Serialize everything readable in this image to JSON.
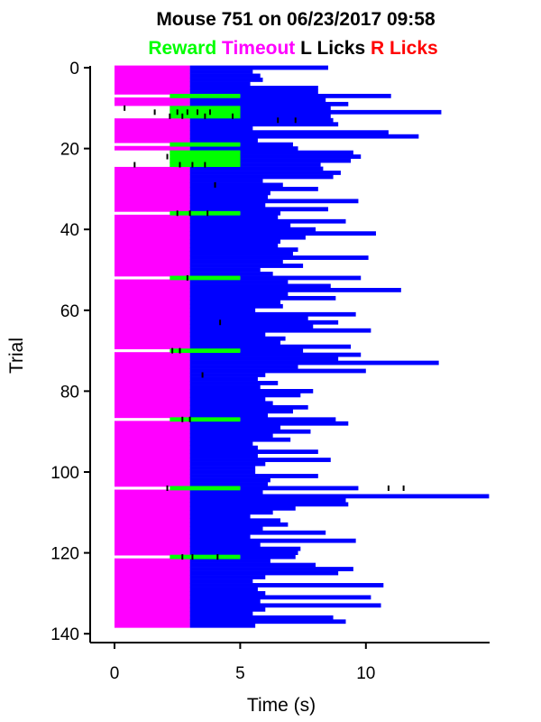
{
  "chart_data": {
    "type": "raster",
    "title": "Mouse 751 on 06/23/2017 09:58",
    "legend": [
      {
        "label": "Reward",
        "color": "#00ff00"
      },
      {
        "label": "Timeout",
        "color": "#ff00ff"
      },
      {
        "label": "L Licks",
        "color": "#000000"
      },
      {
        "label": "R Licks",
        "color": "#ff0000"
      }
    ],
    "xlabel": "Time (s)",
    "ylabel": "Trial",
    "xlim": [
      -0.9,
      15
    ],
    "ylim": [
      141,
      -1
    ],
    "xticks": [
      0,
      5,
      10
    ],
    "yticks": [
      0,
      20,
      40,
      60,
      80,
      100,
      120,
      140
    ],
    "colors": {
      "timeout": "#ff00ff",
      "delay": "#0000ff",
      "reward": "#00ff00",
      "licks": "#000000"
    },
    "timeout_window": [
      0,
      3
    ],
    "reward_window": [
      2.2,
      5
    ],
    "trial_end_times": [
      8.5,
      5.5,
      5.8,
      5.9,
      5.4,
      8.1,
      8.1,
      11.0,
      8.4,
      9.3,
      8.6,
      13.0,
      8.6,
      8.7,
      8.9,
      5.5,
      10.9,
      12.1,
      5.7,
      7.1,
      7.3,
      9.5,
      9.8,
      9.4,
      8.2,
      8.3,
      9.0,
      8.7,
      5.9,
      6.7,
      8.1,
      6.2,
      6.1,
      9.7,
      6.0,
      8.5,
      6.6,
      6.5,
      9.2,
      7.0,
      8.0,
      10.4,
      7.6,
      6.6,
      6.5,
      7.3,
      7.1,
      10.1,
      6.7,
      7.5,
      5.8,
      6.3,
      9.8,
      6.9,
      8.6,
      11.4,
      6.9,
      8.8,
      6.6,
      6.7,
      5.6,
      9.6,
      7.7,
      8.9,
      7.9,
      10.2,
      6.0,
      6.8,
      6.6,
      9.4,
      7.5,
      9.8,
      8.9,
      12.9,
      7.3,
      10.0,
      6.0,
      5.7,
      6.5,
      5.8,
      7.9,
      7.4,
      6.0,
      6.3,
      7.7,
      7.1,
      6.1,
      8.8,
      9.3,
      6.6,
      7.8,
      6.3,
      7.0,
      5.5,
      5.7,
      8.1,
      5.7,
      8.6,
      6.0,
      5.6,
      5.6,
      8.1,
      6.2,
      6.1,
      9.7,
      5.9,
      14.9,
      9.2,
      9.3,
      7.2,
      6.3,
      5.4,
      6.6,
      6.9,
      5.9,
      8.4,
      5.4,
      9.6,
      5.8,
      7.4,
      7.3,
      7.2,
      6.2,
      8.0,
      9.5,
      8.9,
      6.0,
      5.5,
      10.7,
      5.7,
      6.0,
      10.2,
      5.8,
      10.6,
      6.0,
      5.5,
      8.7,
      9.2,
      5.6
    ],
    "rewarded_trials": [
      7,
      10,
      11,
      12,
      19,
      21,
      22,
      23,
      24,
      36,
      52,
      70,
      87,
      104,
      121
    ],
    "l_licks": [
      [
        10,
        0.4
      ],
      [
        11,
        1.6
      ],
      [
        11,
        2.5
      ],
      [
        11,
        2.9
      ],
      [
        11,
        3.3
      ],
      [
        11,
        3.8
      ],
      [
        12,
        2.2
      ],
      [
        12,
        2.7
      ],
      [
        12,
        3.6
      ],
      [
        12,
        4.7
      ],
      [
        13,
        6.5
      ],
      [
        13,
        7.2
      ],
      [
        22,
        2.1
      ],
      [
        24,
        0.8
      ],
      [
        24,
        2.6
      ],
      [
        24,
        3.1
      ],
      [
        24,
        3.6
      ],
      [
        29,
        4.0
      ],
      [
        36,
        2.5
      ],
      [
        36,
        3.0
      ],
      [
        36,
        3.7
      ],
      [
        52,
        2.9
      ],
      [
        63,
        4.2
      ],
      [
        70,
        2.3
      ],
      [
        70,
        2.6
      ],
      [
        76,
        3.5
      ],
      [
        87,
        2.7
      ],
      [
        87,
        3.0
      ],
      [
        104,
        2.1
      ],
      [
        104,
        10.9
      ],
      [
        104,
        11.5
      ],
      [
        121,
        2.7
      ],
      [
        121,
        3.1
      ],
      [
        121,
        4.1
      ]
    ],
    "r_licks": []
  }
}
